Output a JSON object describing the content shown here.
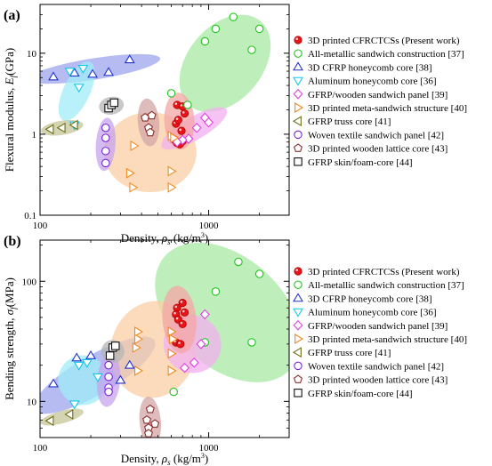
{
  "chart_data": [
    {
      "type": "scatter",
      "panel_label": "(a)",
      "xlabel_main": "Density, ",
      "xlabel_sym": "ρ",
      "xlabel_sub": "s",
      "xlabel_unit": " (kg/m",
      "xlabel_exp": "3",
      "xlabel_end": ")",
      "ylabel_main": "Flexural modulus, ",
      "ylabel_sym": "E",
      "ylabel_sub": "f",
      "ylabel_unit": "(GPa)",
      "x_scale": "log",
      "y_scale": "log",
      "xlim": [
        100,
        3000
      ],
      "ylim": [
        0.1,
        40
      ],
      "xticks": [
        100,
        1000
      ],
      "xtick_labels": [
        "100",
        "1000"
      ],
      "yticks": [
        0.1,
        1,
        10
      ],
      "ytick_labels": [
        "0.1",
        "1",
        "10"
      ],
      "legend_position": "top-right",
      "series": [
        {
          "key": "cfrctcs",
          "name": "3D printed CFRCTCSs (Present work)",
          "marker": "filled-circle",
          "color": "#e8141a",
          "fill": "#f4a6a6",
          "points": [
            [
              650,
              2.3
            ],
            [
              700,
              2.2
            ],
            [
              720,
              1.8
            ],
            [
              640,
              1.35
            ],
            [
              660,
              1.5
            ],
            [
              690,
              1.1
            ],
            [
              630,
              0.85
            ],
            [
              650,
              0.78
            ],
            [
              700,
              0.82
            ],
            [
              675,
              0.75
            ]
          ]
        },
        {
          "key": "metallic",
          "name": "All-metallic sandwich construction [37]",
          "marker": "circle",
          "color": "#22c41e",
          "fill": "#a8eaa4",
          "points": [
            [
              1400,
              28
            ],
            [
              1100,
              20
            ],
            [
              2000,
              20
            ],
            [
              950,
              14
            ],
            [
              1800,
              11
            ],
            [
              600,
              3.2
            ],
            [
              750,
              2.3
            ]
          ]
        },
        {
          "key": "cfrp",
          "name": "3D CFRP honeycomb core [38]",
          "marker": "triangle-up",
          "color": "#2233cc",
          "fill": "#9ea5ec",
          "points": [
            [
              120,
              5.1
            ],
            [
              160,
              5.7
            ],
            [
              205,
              5.5
            ],
            [
              255,
              5.8
            ],
            [
              340,
              8.3
            ]
          ]
        },
        {
          "key": "aluminium",
          "name": "Aluminum honeycomb core [36]",
          "marker": "triangle-down",
          "color": "#12c8e8",
          "fill": "#a0ecf7",
          "points": [
            [
              150,
              6.0
            ],
            [
              170,
              3.8
            ],
            [
              180,
              6.5
            ],
            [
              160,
              1.3
            ]
          ]
        },
        {
          "key": "gfrp_wood",
          "name": "GFRP/wooden sandwich panel [39]",
          "marker": "diamond",
          "color": "#e040e0",
          "fill": "#f2b0f0",
          "points": [
            [
              950,
              1.6
            ],
            [
              850,
              1.2
            ],
            [
              1000,
              1.4
            ],
            [
              760,
              0.88
            ],
            [
              700,
              0.85
            ],
            [
              650,
              0.8
            ]
          ]
        },
        {
          "key": "meta",
          "name": "3D printed meta-sandwich structure [40]",
          "marker": "triangle-right",
          "color": "#f08a1c",
          "fill": "#f9cfa4",
          "points": [
            [
              600,
              0.95
            ],
            [
              620,
              0.9
            ],
            [
              360,
              0.72
            ],
            [
              340,
              0.33
            ],
            [
              600,
              0.35
            ],
            [
              355,
              0.22
            ],
            [
              600,
              0.22
            ]
          ]
        },
        {
          "key": "truss",
          "name": "GFRP truss core [41]",
          "marker": "triangle-left",
          "color": "#6e6e14",
          "fill": "#c6c69a",
          "points": [
            [
              115,
              1.15
            ],
            [
              135,
              1.2
            ],
            [
              160,
              1.3
            ]
          ]
        },
        {
          "key": "woven",
          "name": "Woven textile sandwich panel [42]",
          "marker": "circle",
          "color": "#7a24d8",
          "fill": "#c6a4ee",
          "points": [
            [
              245,
              1.2
            ],
            [
              245,
              0.9
            ],
            [
              245,
              0.62
            ],
            [
              245,
              0.44
            ]
          ]
        },
        {
          "key": "wooden",
          "name": "3D printed wooden lattice core [43]",
          "marker": "pentagon",
          "color": "#8b2e2e",
          "fill": "#d4a6a6",
          "points": [
            [
              420,
              1.6
            ],
            [
              440,
              1.2
            ],
            [
              460,
              1.7
            ],
            [
              450,
              1.05
            ]
          ]
        },
        {
          "key": "skin",
          "name": "GFRP skin/foam-core [44]",
          "marker": "square",
          "color": "#111111",
          "fill": "#b6b6b6",
          "points": [
            [
              255,
              2.1
            ],
            [
              265,
              2.3
            ],
            [
              275,
              2.45
            ]
          ]
        }
      ]
    },
    {
      "type": "scatter",
      "panel_label": "(b)",
      "xlabel_main": "Density, ",
      "xlabel_sym": "ρ",
      "xlabel_sub": "s",
      "xlabel_unit": " (kg/m",
      "xlabel_exp": "3",
      "xlabel_end": ")",
      "ylabel_main": "Bending strength, ",
      "ylabel_sym": "σ",
      "ylabel_sub": "f",
      "ylabel_unit": "(MPa)",
      "x_scale": "log",
      "y_scale": "log",
      "xlim": [
        100,
        3000
      ],
      "ylim": [
        5,
        220
      ],
      "xticks": [
        100,
        1000
      ],
      "xtick_labels": [
        "100",
        "1000"
      ],
      "yticks": [
        10,
        100
      ],
      "ytick_labels": [
        "10",
        "100"
      ],
      "legend_position": "top-right",
      "series": [
        {
          "key": "cfrctcs",
          "name": "3D printed CFRCTCSs (Present work)",
          "marker": "filled-circle",
          "color": "#e8141a",
          "fill": "#f4a6a6",
          "points": [
            [
              700,
              66
            ],
            [
              650,
              60
            ],
            [
              720,
              55
            ],
            [
              640,
              53
            ],
            [
              660,
              48
            ],
            [
              700,
              44
            ],
            [
              640,
              31
            ],
            [
              680,
              30
            ]
          ]
        },
        {
          "key": "metallic",
          "name": "All-metallic sandwich construction [37]",
          "marker": "circle",
          "color": "#22c41e",
          "fill": "#a8eaa4",
          "points": [
            [
              1500,
              145
            ],
            [
              2000,
              115
            ],
            [
              1100,
              82
            ],
            [
              950,
              31
            ],
            [
              1800,
              31
            ],
            [
              620,
              12
            ]
          ]
        },
        {
          "key": "cfrp",
          "name": "3D CFRP honeycomb core [38]",
          "marker": "triangle-up",
          "color": "#2233cc",
          "fill": "#9ea5ec",
          "points": [
            [
              120,
              14
            ],
            [
              165,
              23
            ],
            [
              200,
              24
            ],
            [
              300,
              15
            ],
            [
              340,
              20
            ]
          ]
        },
        {
          "key": "aluminium",
          "name": "Aluminum honeycomb core [36]",
          "marker": "triangle-down",
          "color": "#12c8e8",
          "fill": "#a0ecf7",
          "points": [
            [
              170,
              20
            ],
            [
              190,
              21
            ],
            [
              220,
              16
            ],
            [
              160,
              9.5
            ]
          ]
        },
        {
          "key": "gfrp_wood",
          "name": "GFRP/wooden sandwich panel [39]",
          "marker": "diamond",
          "color": "#e040e0",
          "fill": "#f2b0f0",
          "points": [
            [
              950,
              53
            ],
            [
              900,
              30
            ],
            [
              820,
              21
            ],
            [
              720,
              19
            ]
          ]
        },
        {
          "key": "meta",
          "name": "3D printed meta-sandwich structure [40]",
          "marker": "triangle-right",
          "color": "#f08a1c",
          "fill": "#f9cfa4",
          "points": [
            [
              380,
              38
            ],
            [
              380,
              33
            ],
            [
              370,
              28
            ],
            [
              600,
              38
            ],
            [
              610,
              33
            ],
            [
              600,
              25
            ],
            [
              380,
              18
            ],
            [
              600,
              18
            ]
          ]
        },
        {
          "key": "truss",
          "name": "GFRP truss core [41]",
          "marker": "triangle-left",
          "color": "#6e6e14",
          "fill": "#c6c69a",
          "points": [
            [
              115,
              6.9
            ],
            [
              150,
              7.8
            ]
          ]
        },
        {
          "key": "woven",
          "name": "Woven textile sandwich panel [42]",
          "marker": "circle",
          "color": "#7a24d8",
          "fill": "#c6a4ee",
          "points": [
            [
              255,
              20
            ],
            [
              255,
              16
            ],
            [
              255,
              13
            ],
            [
              255,
              12
            ]
          ]
        },
        {
          "key": "wooden",
          "name": "3D printed wooden lattice core [43]",
          "marker": "pentagon",
          "color": "#8b2e2e",
          "fill": "#d4a6a6",
          "points": [
            [
              450,
              8.6
            ],
            [
              430,
              7.0
            ],
            [
              480,
              6.5
            ],
            [
              440,
              6.0
            ],
            [
              440,
              5.4
            ]
          ]
        },
        {
          "key": "skin",
          "name": "GFRP skin/foam-core [44]",
          "marker": "square",
          "color": "#111111",
          "fill": "#b6b6b6",
          "points": [
            [
              260,
              24
            ],
            [
              270,
              28
            ],
            [
              280,
              29
            ]
          ]
        }
      ]
    }
  ]
}
